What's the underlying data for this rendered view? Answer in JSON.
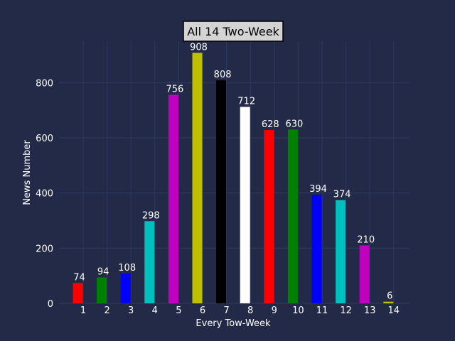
{
  "chart_data": {
    "type": "bar",
    "title": "All 14 Two-Week",
    "xlabel": "Every Tow-Week",
    "ylabel": "News Number",
    "categories": [
      "1",
      "2",
      "3",
      "4",
      "5",
      "6",
      "7",
      "8",
      "9",
      "10",
      "11",
      "12",
      "13",
      "14"
    ],
    "values": [
      74,
      94,
      108,
      298,
      756,
      908,
      808,
      712,
      628,
      630,
      394,
      374,
      210,
      6
    ],
    "bar_colors": [
      "#ff0000",
      "#008000",
      "#0000ff",
      "#00bfbf",
      "#bf00bf",
      "#bfbf00",
      "#000000",
      "#ffffff",
      "#ff0000",
      "#008000",
      "#0000ff",
      "#00bfbf",
      "#bf00bf",
      "#bfbf00"
    ],
    "yticks": [
      0,
      200,
      400,
      600,
      800
    ],
    "ylim": [
      0,
      950
    ],
    "grid": true,
    "background_color": "#222a48",
    "grid_color": "#2e3a5e",
    "title_box_color": "#d4d4d4"
  }
}
